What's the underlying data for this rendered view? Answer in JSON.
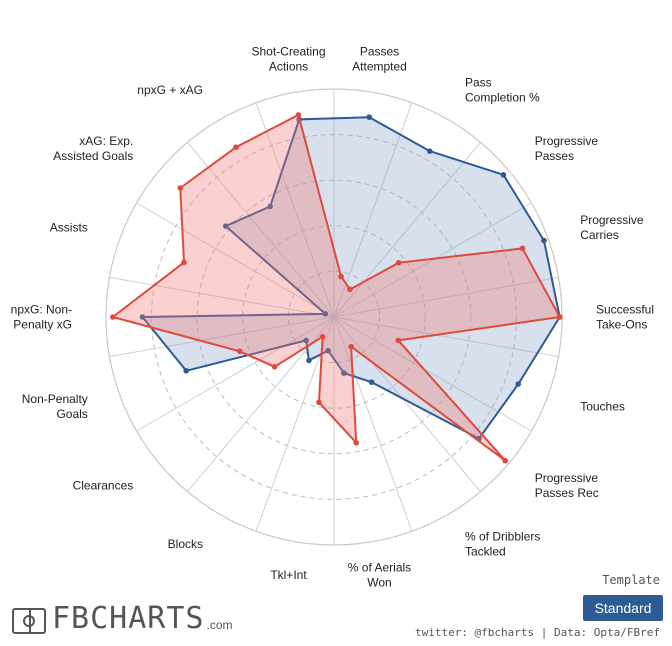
{
  "chart_data": {
    "type": "radar",
    "categories": [
      [
        "Passes",
        "Attempted"
      ],
      [
        "Pass",
        "Completion %"
      ],
      [
        "Progressive",
        "Passes"
      ],
      [
        "Progressive",
        "Carries"
      ],
      [
        "Successful",
        "Take-Ons"
      ],
      [
        "Touches"
      ],
      [
        "Progressive",
        "Passes Rec"
      ],
      [
        "% of Dribblers",
        "Tackled"
      ],
      [
        "% of Aerials",
        "Won"
      ],
      [
        "Tkl+Int"
      ],
      [
        "Blocks"
      ],
      [
        "Clearances"
      ],
      [
        "Non-Penalty",
        "Goals"
      ],
      [
        "npxG: Non-",
        "Penalty xG"
      ],
      [
        "Assists"
      ],
      [
        "xAG: Exp.",
        "Assisted Goals"
      ],
      [
        "npxG + xAG"
      ],
      [
        "Shot-Creating",
        "Actions"
      ]
    ],
    "rlim": [
      0,
      100
    ],
    "rings": [
      20,
      40,
      60,
      80,
      100
    ],
    "series": [
      {
        "color": "#2d5b94",
        "fill": "rgba(140,165,200,0.35)",
        "values": [
          89,
          84,
          97,
          98,
          99,
          86,
          83,
          33,
          25,
          15,
          22,
          16,
          69,
          84,
          4,
          62,
          56,
          88
        ]
      },
      {
        "color": "#e04a3c",
        "fill": "rgba(240,120,120,0.35)",
        "values": [
          18,
          14,
          37,
          88,
          99,
          30,
          98,
          15,
          56,
          38,
          10,
          34,
          44,
          97,
          70,
          88,
          86,
          90
        ]
      }
    ]
  },
  "branding": {
    "logo_text": "FBCHARTS",
    "logo_domain": ".com"
  },
  "template": {
    "label": "Template",
    "button": "Standard"
  },
  "credit": "twitter: @fbcharts | Data: Opta/FBref"
}
